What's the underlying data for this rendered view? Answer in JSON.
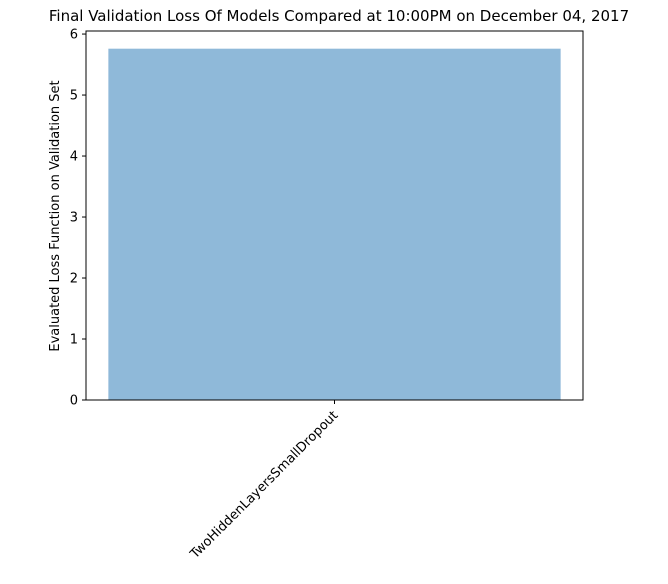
{
  "chart_data": {
    "type": "bar",
    "title": "Final Validation Loss Of Models Compared at 10:00PM on December 04, 2017",
    "xlabel": "",
    "ylabel": "Evaluated Loss Function on Validation Set",
    "categories": [
      "TwoHiddenLayersSmallDropout"
    ],
    "values": [
      5.76
    ],
    "ylim": [
      0,
      6.05
    ],
    "yticks": [
      0,
      1,
      2,
      3,
      4,
      5,
      6
    ],
    "grid": false,
    "bar_color": "#8fb9d9",
    "bar_opacity": 1.0
  }
}
